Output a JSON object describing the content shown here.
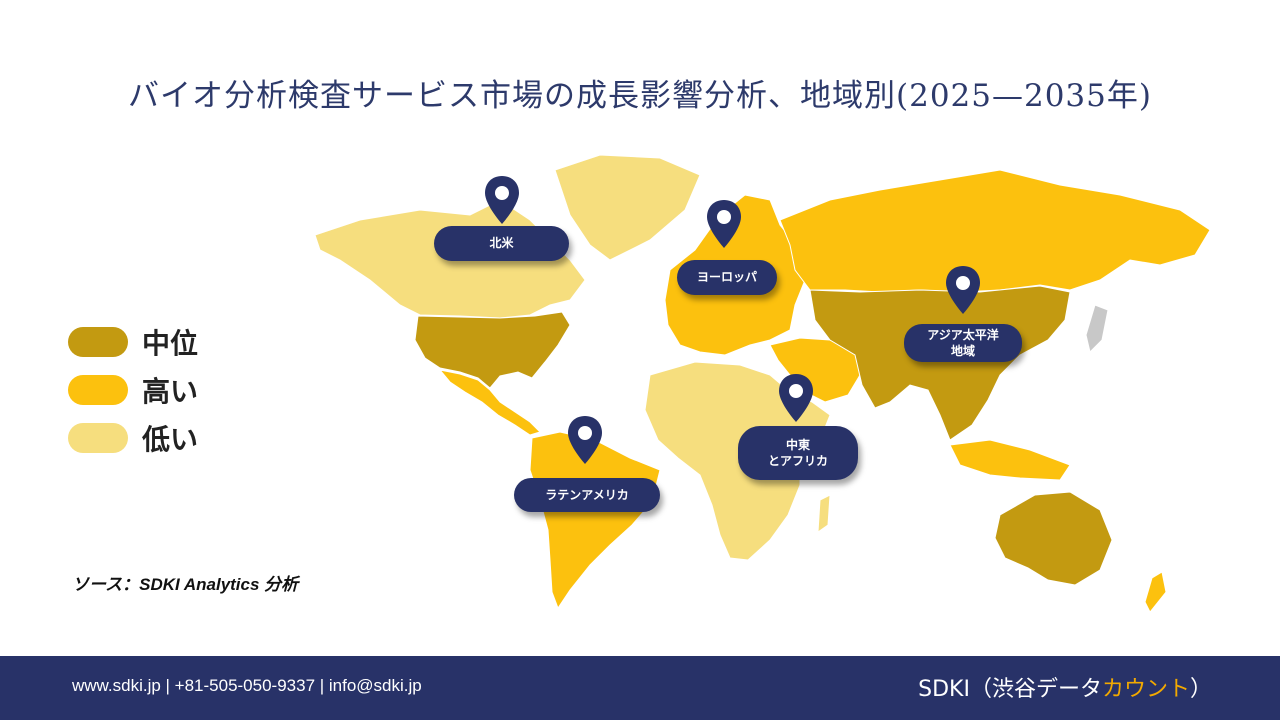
{
  "title": "バイオ分析検査サービス市場の成長影響分析、地域別(2025—2035年)",
  "colors": {
    "medium": "#c39a11",
    "high": "#fcc10e",
    "low": "#f6de7e",
    "navy": "#283268",
    "accent": "#f2a900",
    "greenland": "#f6de7e",
    "unclassified": "#c8c8c8"
  },
  "legend": [
    {
      "label": "中位",
      "level": "medium"
    },
    {
      "label": "高い",
      "level": "high"
    },
    {
      "label": "低い",
      "level": "low"
    }
  ],
  "regions": [
    {
      "name": "北米",
      "lines": [
        "北米"
      ]
    },
    {
      "name": "ヨーロッパ",
      "lines": [
        "ヨーロッパ"
      ]
    },
    {
      "name": "アジア太平洋地域",
      "lines": [
        "アジア太平洋",
        "地域"
      ]
    },
    {
      "name": "中東とアフリカ",
      "lines": [
        "中東",
        "とアフリカ"
      ]
    },
    {
      "name": "ラテンアメリカ",
      "lines": [
        "ラテンアメリカ"
      ]
    }
  ],
  "source": "ソース：SDKI Analytics 分析",
  "footer": {
    "contact": "www.sdki.jp | +81-505-050-9337 | info@sdki.jp",
    "brand_main": "SDKI（渋谷データ",
    "brand_accent": "カウント",
    "brand_end": "）"
  }
}
